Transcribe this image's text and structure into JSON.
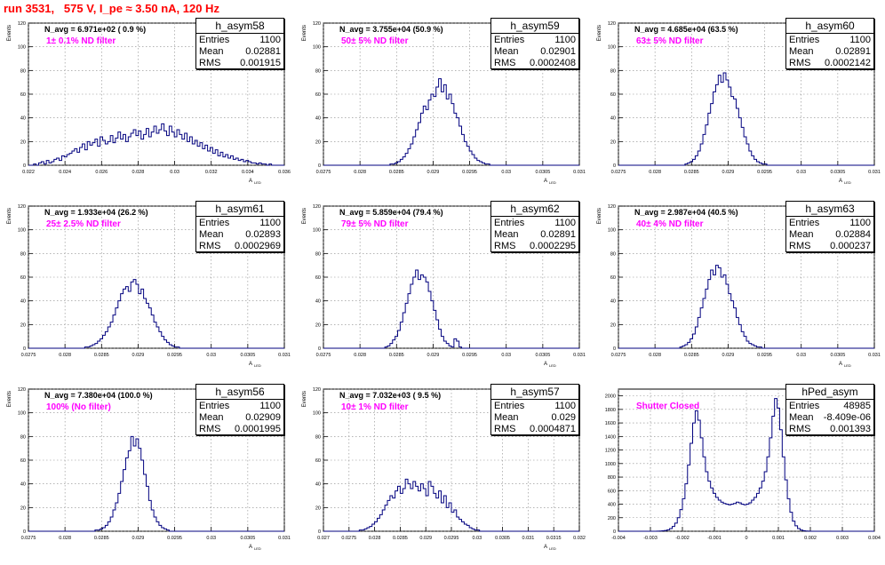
{
  "run_title": "run 3531,   575 V, I_pe ≈ 3.50 nA, 120 Hz",
  "chart_data": [
    {
      "type": "histogram",
      "name": "h_asym58",
      "stats": {
        "entries": "1100",
        "mean": "0.02881",
        "rms": "0.001915"
      },
      "navg": "N_avg = 6.971e+02 ( 0.9 %)",
      "filter_label": "1± 0.1% ND filter",
      "xlabel": "A",
      "xlabel_sub": "LED",
      "ylabel": "Events",
      "xlim": [
        0.022,
        0.036
      ],
      "ylim": [
        0,
        120
      ],
      "xticks": [
        "0.022",
        "0.024",
        "0.026",
        "0.028",
        "0.03",
        "0.032",
        "0.034",
        "0.036"
      ],
      "yticks": [
        "0",
        "20",
        "40",
        "60",
        "80",
        "100",
        "120"
      ],
      "counts": [
        0,
        0,
        1,
        0,
        2,
        3,
        1,
        4,
        2,
        3,
        5,
        6,
        4,
        8,
        7,
        9,
        10,
        12,
        14,
        11,
        15,
        18,
        13,
        20,
        17,
        19,
        22,
        16,
        24,
        21,
        18,
        20,
        25,
        19,
        23,
        28,
        22,
        26,
        20,
        24,
        27,
        30,
        25,
        29,
        22,
        26,
        31,
        24,
        28,
        33,
        27,
        30,
        35,
        29,
        25,
        33,
        28,
        24,
        30,
        26,
        22,
        27,
        20,
        24,
        18,
        21,
        16,
        19,
        14,
        17,
        12,
        15,
        10,
        13,
        8,
        11,
        7,
        9,
        6,
        8,
        5,
        6,
        4,
        5,
        3,
        4,
        3,
        2,
        2,
        1,
        2,
        1,
        1,
        0,
        1,
        0,
        0,
        0,
        0,
        0
      ]
    },
    {
      "type": "histogram",
      "name": "h_asym59",
      "stats": {
        "entries": "1100",
        "mean": "0.02901",
        "rms": "0.0002408"
      },
      "navg": "N_avg = 3.755e+04 (50.9 %)",
      "filter_label": "50± 5% ND filter",
      "xlabel": "A",
      "xlabel_sub": "LED",
      "ylabel": "Events",
      "xlim": [
        0.0275,
        0.031
      ],
      "ylim": [
        0,
        120
      ],
      "xticks": [
        "0.0275",
        "0.028",
        "0.0285",
        "0.029",
        "0.0295",
        "0.03",
        "0.0305",
        "0.031"
      ],
      "yticks": [
        "0",
        "20",
        "40",
        "60",
        "80",
        "100",
        "120"
      ],
      "counts": [
        0,
        0,
        0,
        0,
        0,
        0,
        0,
        0,
        0,
        0,
        0,
        0,
        0,
        0,
        0,
        0,
        0,
        0,
        0,
        0,
        0,
        0,
        0,
        0,
        0,
        0,
        1,
        1,
        2,
        3,
        5,
        7,
        10,
        14,
        18,
        24,
        30,
        36,
        44,
        50,
        47,
        55,
        60,
        58,
        66,
        73,
        62,
        68,
        56,
        60,
        52,
        44,
        40,
        33,
        26,
        20,
        16,
        12,
        9,
        6,
        4,
        3,
        2,
        1,
        1,
        0,
        0,
        0,
        0,
        0,
        0,
        0,
        0,
        0,
        0,
        0,
        0,
        0,
        0,
        0,
        0,
        0,
        0,
        0,
        0,
        0,
        0,
        0,
        0,
        0,
        0,
        0,
        0,
        0,
        0,
        0,
        0,
        0,
        0,
        0
      ]
    },
    {
      "type": "histogram",
      "name": "h_asym60",
      "stats": {
        "entries": "1100",
        "mean": "0.02891",
        "rms": "0.0002142"
      },
      "navg": "N_avg = 4.685e+04 (63.5 %)",
      "filter_label": "63± 5% ND filter",
      "xlabel": "A",
      "xlabel_sub": "LED",
      "ylabel": "Events",
      "xlim": [
        0.0275,
        0.031
      ],
      "ylim": [
        0,
        120
      ],
      "xticks": [
        "0.0275",
        "0.028",
        "0.0285",
        "0.029",
        "0.0295",
        "0.03",
        "0.0305",
        "0.031"
      ],
      "yticks": [
        "0",
        "20",
        "40",
        "60",
        "80",
        "100",
        "120"
      ],
      "counts": [
        0,
        0,
        0,
        0,
        0,
        0,
        0,
        0,
        0,
        0,
        0,
        0,
        0,
        0,
        0,
        0,
        0,
        0,
        0,
        0,
        0,
        0,
        0,
        0,
        0,
        0,
        1,
        2,
        3,
        5,
        8,
        12,
        18,
        26,
        34,
        44,
        52,
        62,
        68,
        76,
        70,
        78,
        72,
        66,
        58,
        56,
        48,
        40,
        32,
        24,
        18,
        12,
        8,
        5,
        3,
        2,
        1,
        1,
        0,
        0,
        0,
        0,
        0,
        0,
        0,
        0,
        0,
        0,
        0,
        0,
        0,
        0,
        0,
        0,
        0,
        0,
        0,
        0,
        0,
        0,
        0,
        0,
        0,
        0,
        0,
        0,
        0,
        0,
        0,
        0,
        0,
        0,
        0,
        0,
        0,
        0,
        0,
        0,
        0,
        0
      ]
    },
    {
      "type": "histogram",
      "name": "h_asym61",
      "stats": {
        "entries": "1100",
        "mean": "0.02893",
        "rms": "0.0002969"
      },
      "navg": "N_avg = 1.933e+04 (26.2 %)",
      "filter_label": "25± 2.5% ND filter",
      "xlabel": "A",
      "xlabel_sub": "LED",
      "ylabel": "Events",
      "xlim": [
        0.0275,
        0.031
      ],
      "ylim": [
        0,
        120
      ],
      "xticks": [
        "0.0275",
        "0.028",
        "0.0285",
        "0.029",
        "0.0295",
        "0.03",
        "0.0305",
        "0.031"
      ],
      "yticks": [
        "0",
        "20",
        "40",
        "60",
        "80",
        "100",
        "120"
      ],
      "counts": [
        0,
        0,
        0,
        0,
        0,
        0,
        0,
        0,
        0,
        0,
        0,
        0,
        0,
        0,
        0,
        0,
        0,
        0,
        0,
        0,
        0,
        0,
        1,
        1,
        2,
        3,
        4,
        6,
        8,
        11,
        14,
        18,
        22,
        28,
        34,
        40,
        46,
        50,
        52,
        48,
        56,
        58,
        54,
        46,
        50,
        42,
        38,
        34,
        28,
        22,
        18,
        14,
        10,
        7,
        5,
        3,
        2,
        1,
        1,
        0,
        0,
        0,
        0,
        0,
        0,
        0,
        0,
        0,
        0,
        0,
        0,
        0,
        0,
        0,
        0,
        0,
        0,
        0,
        0,
        0,
        0,
        0,
        0,
        0,
        0,
        0,
        0,
        0,
        0,
        0,
        0,
        0,
        0,
        0,
        0,
        0,
        0,
        0,
        0,
        0
      ]
    },
    {
      "type": "histogram",
      "name": "h_asym62",
      "stats": {
        "entries": "1100",
        "mean": "0.02891",
        "rms": "0.0002295"
      },
      "navg": "N_avg = 5.859e+04 (79.4 %)",
      "filter_label": "79± 5% ND filter",
      "xlabel": "A",
      "xlabel_sub": "LED",
      "ylabel": "Events",
      "xlim": [
        0.0275,
        0.031
      ],
      "ylim": [
        0,
        120
      ],
      "xticks": [
        "0.0275",
        "0.028",
        "0.0285",
        "0.029",
        "0.0295",
        "0.03",
        "0.0305",
        "0.031"
      ],
      "yticks": [
        "0",
        "20",
        "40",
        "60",
        "80",
        "100",
        "120"
      ],
      "counts": [
        0,
        0,
        0,
        0,
        0,
        0,
        0,
        0,
        0,
        0,
        0,
        0,
        0,
        0,
        0,
        0,
        0,
        0,
        0,
        0,
        0,
        0,
        0,
        0,
        1,
        2,
        4,
        7,
        10,
        15,
        22,
        30,
        38,
        46,
        54,
        60,
        66,
        58,
        62,
        60,
        56,
        48,
        40,
        32,
        24,
        16,
        10,
        6,
        4,
        2,
        1,
        8,
        6,
        1,
        0,
        0,
        0,
        0,
        0,
        0,
        0,
        0,
        0,
        0,
        0,
        0,
        0,
        0,
        0,
        0,
        0,
        0,
        0,
        0,
        0,
        0,
        0,
        0,
        0,
        0,
        0,
        0,
        0,
        0,
        0,
        0,
        0,
        0,
        0,
        0,
        0,
        0,
        0,
        0,
        0,
        0,
        0,
        0,
        0,
        0
      ]
    },
    {
      "type": "histogram",
      "name": "h_asym63",
      "stats": {
        "entries": "1100",
        "mean": "0.02884",
        "rms": "0.000237"
      },
      "navg": "N_avg = 2.987e+04 (40.5 %)",
      "filter_label": "40± 4% ND filter",
      "xlabel": "A",
      "xlabel_sub": "LED",
      "ylabel": "Events",
      "xlim": [
        0.0275,
        0.031
      ],
      "ylim": [
        0,
        120
      ],
      "xticks": [
        "0.0275",
        "0.028",
        "0.0285",
        "0.029",
        "0.0295",
        "0.03",
        "0.0305",
        "0.031"
      ],
      "yticks": [
        "0",
        "20",
        "40",
        "60",
        "80",
        "100",
        "120"
      ],
      "counts": [
        0,
        0,
        0,
        0,
        0,
        0,
        0,
        0,
        0,
        0,
        0,
        0,
        0,
        0,
        0,
        0,
        0,
        0,
        0,
        0,
        0,
        0,
        0,
        0,
        1,
        2,
        3,
        5,
        8,
        12,
        18,
        26,
        34,
        42,
        50,
        58,
        66,
        62,
        70,
        68,
        60,
        62,
        54,
        46,
        40,
        34,
        26,
        20,
        14,
        10,
        6,
        4,
        3,
        2,
        1,
        1,
        0,
        0,
        0,
        0,
        0,
        0,
        0,
        0,
        0,
        0,
        0,
        0,
        0,
        0,
        0,
        0,
        0,
        0,
        0,
        0,
        0,
        0,
        0,
        0,
        0,
        0,
        0,
        0,
        0,
        0,
        0,
        0,
        0,
        0,
        0,
        0,
        0,
        0,
        0,
        0,
        0,
        0,
        0,
        0
      ]
    },
    {
      "type": "histogram",
      "name": "h_asym56",
      "stats": {
        "entries": "1100",
        "mean": "0.02909",
        "rms": "0.0001995"
      },
      "navg": "N_avg = 7.380e+04 (100.0 %)",
      "filter_label": "100% (No filter)",
      "xlabel": "A",
      "xlabel_sub": "LED",
      "ylabel": "Events",
      "xlim": [
        0.0275,
        0.031
      ],
      "ylim": [
        0,
        120
      ],
      "xticks": [
        "0.0275",
        "0.028",
        "0.0285",
        "0.029",
        "0.0295",
        "0.03",
        "0.0305",
        "0.031"
      ],
      "yticks": [
        "0",
        "20",
        "40",
        "60",
        "80",
        "100",
        "120"
      ],
      "counts": [
        0,
        0,
        0,
        0,
        0,
        0,
        0,
        0,
        0,
        0,
        0,
        0,
        0,
        0,
        0,
        0,
        0,
        0,
        0,
        0,
        0,
        0,
        0,
        0,
        0,
        0,
        1,
        1,
        2,
        3,
        5,
        8,
        12,
        18,
        24,
        32,
        42,
        52,
        62,
        68,
        80,
        72,
        78,
        70,
        60,
        48,
        38,
        26,
        18,
        12,
        8,
        5,
        3,
        2,
        1,
        0,
        0,
        0,
        0,
        0,
        0,
        0,
        0,
        0,
        0,
        0,
        0,
        0,
        0,
        0,
        0,
        0,
        0,
        0,
        0,
        0,
        0,
        0,
        0,
        0,
        0,
        0,
        0,
        0,
        0,
        0,
        0,
        0,
        0,
        0,
        0,
        0,
        0,
        0,
        0,
        0,
        0,
        0,
        0,
        0
      ]
    },
    {
      "type": "histogram",
      "name": "h_asym57",
      "stats": {
        "entries": "1100",
        "mean": "0.029",
        "rms": "0.0004871"
      },
      "navg": "N_avg = 7.032e+03 ( 9.5 %)",
      "filter_label": "10± 1% ND filter",
      "xlabel": "A",
      "xlabel_sub": "LED",
      "ylabel": "Events",
      "xlim": [
        0.027,
        0.032
      ],
      "ylim": [
        0,
        120
      ],
      "xticks": [
        "0.027",
        "0.0275",
        "0.028",
        "0.0285",
        "0.029",
        "0.0295",
        "0.03",
        "0.0305",
        "0.031",
        "0.0315",
        "0.032"
      ],
      "yticks": [
        "0",
        "20",
        "40",
        "60",
        "80",
        "100",
        "120"
      ],
      "counts": [
        0,
        0,
        0,
        0,
        0,
        0,
        0,
        0,
        0,
        0,
        0,
        0,
        0,
        0,
        1,
        1,
        2,
        3,
        4,
        6,
        8,
        11,
        14,
        18,
        22,
        26,
        30,
        28,
        34,
        38,
        32,
        36,
        44,
        40,
        36,
        42,
        38,
        34,
        40,
        36,
        30,
        42,
        38,
        32,
        28,
        34,
        24,
        30,
        20,
        24,
        16,
        18,
        12,
        10,
        8,
        6,
        5,
        3,
        2,
        1,
        1,
        0,
        0,
        0,
        0,
        0,
        0,
        0,
        0,
        0,
        0,
        0,
        0,
        0,
        0,
        0,
        0,
        0,
        0,
        0,
        0,
        0,
        0,
        0,
        0,
        0,
        0,
        0,
        0,
        0,
        0,
        0,
        0,
        0,
        0,
        0,
        0,
        0,
        0,
        0
      ]
    },
    {
      "type": "histogram",
      "name": "hPed_asym",
      "stats": {
        "entries": "48985",
        "mean": "-8.409e-06",
        "rms": "0.001393"
      },
      "navg": "",
      "filter_label": "Shutter Closed",
      "xlabel": "",
      "xlabel_sub": "",
      "ylabel": "",
      "xlim": [
        -0.004,
        0.004
      ],
      "ylim": [
        0,
        2100
      ],
      "xticks": [
        "-0.004",
        "-0.003",
        "-0.002",
        "-0.001",
        "0",
        "0.001",
        "0.002",
        "0.003",
        "0.004"
      ],
      "yticks": [
        "0",
        "200",
        "400",
        "600",
        "800",
        "1000",
        "1200",
        "1400",
        "1600",
        "1800",
        "2000"
      ],
      "counts": [
        0,
        0,
        0,
        0,
        0,
        0,
        0,
        0,
        0,
        0,
        0,
        0,
        0,
        0,
        0,
        1,
        3,
        6,
        12,
        22,
        40,
        70,
        120,
        200,
        320,
        480,
        700,
        980,
        1300,
        1600,
        1780,
        1640,
        1380,
        1100,
        880,
        740,
        640,
        560,
        500,
        460,
        430,
        410,
        400,
        390,
        400,
        410,
        430,
        420,
        400,
        390,
        400,
        420,
        460,
        500,
        560,
        640,
        740,
        880,
        1100,
        1380,
        1700,
        1960,
        1820,
        1500,
        1100,
        760,
        480,
        280,
        150,
        80,
        40,
        18,
        8,
        3,
        1,
        0,
        0,
        0,
        0,
        0,
        0,
        0,
        0,
        0,
        0,
        0,
        0,
        0,
        0,
        0,
        0,
        0,
        0,
        0,
        0,
        0,
        0,
        0,
        0,
        0
      ]
    }
  ]
}
